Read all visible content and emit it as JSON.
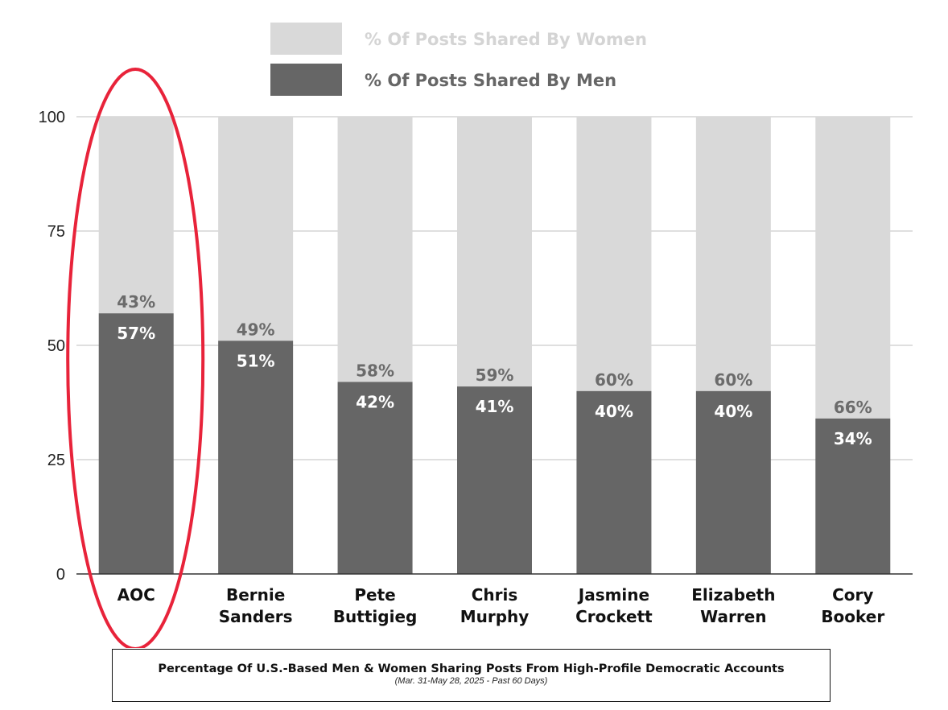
{
  "chart_data": {
    "type": "bar",
    "stacked": true,
    "categories": [
      [
        "AOC"
      ],
      [
        "Bernie",
        "Sanders"
      ],
      [
        "Pete",
        "Buttigieg"
      ],
      [
        "Chris",
        "Murphy"
      ],
      [
        "Jasmine",
        "Crockett"
      ],
      [
        "Elizabeth",
        "Warren"
      ],
      [
        "Cory",
        "Booker"
      ]
    ],
    "series": [
      {
        "name": "% Of Posts Shared By Men",
        "color": "#666666",
        "values": [
          57,
          51,
          42,
          41,
          40,
          40,
          34
        ],
        "labels": [
          "57%",
          "51%",
          "42%",
          "41%",
          "40%",
          "40%",
          "34%"
        ]
      },
      {
        "name": "% Of Posts Shared By Women",
        "color": "#d9d9d9",
        "values": [
          43,
          49,
          58,
          59,
          60,
          60,
          66
        ],
        "labels": [
          "43%",
          "49%",
          "58%",
          "59%",
          "60%",
          "60%",
          "66%"
        ]
      }
    ],
    "yticks": [
      "0",
      "25",
      "50",
      "75",
      "100"
    ],
    "ylim": [
      0,
      100
    ],
    "grid": true,
    "legend_position": "top",
    "highlight": {
      "category_index": 0,
      "color": "#e8233a",
      "shape": "ellipse"
    }
  },
  "caption": {
    "title": "Percentage Of U.S.-Based Men & Women Sharing Posts From High-Profile Democratic Accounts",
    "subtitle": "(Mar. 31-May 28,  2025 - Past 60 Days)"
  }
}
